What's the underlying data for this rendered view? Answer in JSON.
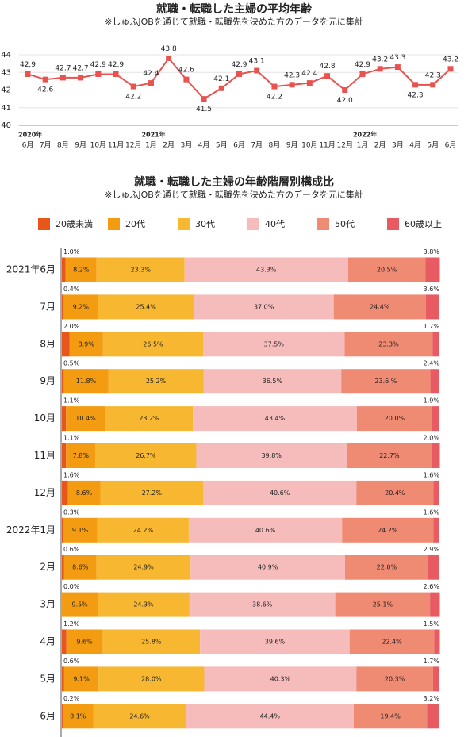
{
  "chart_data": [
    {
      "type": "line",
      "title": "就職・転職した主婦の平均年齢",
      "subtitle": "※しゅふJOBを通じて就職・転職先を決めた方のデータを元に集計",
      "categories": [
        "6月",
        "7月",
        "8月",
        "9月",
        "10月",
        "11月",
        "12月",
        "1月",
        "2月",
        "3月",
        "4月",
        "5月",
        "6月",
        "7月",
        "8月",
        "9月",
        "10月",
        "11月",
        "12月",
        "1月",
        "2月",
        "3月",
        "4月",
        "5月",
        "6月"
      ],
      "year_labels": [
        "2020年",
        null,
        null,
        null,
        null,
        null,
        null,
        "2021年",
        null,
        null,
        null,
        null,
        null,
        null,
        null,
        null,
        null,
        null,
        null,
        "2022年",
        null,
        null,
        null,
        null,
        null
      ],
      "series": [
        {
          "color": "#e8534f",
          "values": [
            42.9,
            42.6,
            42.7,
            42.7,
            42.9,
            42.9,
            42.2,
            42.4,
            43.8,
            42.6,
            41.5,
            42.1,
            42.9,
            43.1,
            42.2,
            42.3,
            42.4,
            42.8,
            42.0,
            42.9,
            43.2,
            43.3,
            42.3,
            42.3,
            43.2
          ],
          "value_labels": [
            "42.9",
            "42.6",
            "42.7",
            "42.7",
            "42.9",
            "42.9",
            "42.2",
            "42.4",
            "43.8",
            "42.6",
            "41.5",
            "42.1",
            "42.9",
            "43.1",
            "42.2",
            "42.3",
            "42.4",
            "42.8",
            "42.0",
            "42.9",
            "43.2",
            "43.3",
            "42.3",
            "42.3",
            "43.2"
          ]
        }
      ],
      "ylim": [
        40,
        44
      ],
      "yticks": [
        40,
        41,
        42,
        43,
        44
      ],
      "grid": true
    },
    {
      "type": "bar",
      "orientation": "horizontal",
      "stacked": true,
      "title": "就職・転職した主婦の年齢階層別構成比",
      "subtitle": "※しゅふJOBを通じて就職・転職先を決めた方のデータを元に集計",
      "categories": [
        "2021年6月",
        "7月",
        "8月",
        "9月",
        "10月",
        "11月",
        "12月",
        "2022年1月",
        "2月",
        "3月",
        "4月",
        "5月",
        "6月"
      ],
      "xlim": [
        0,
        100
      ],
      "series": [
        {
          "name": "20歳未満",
          "color": "#e8561c",
          "values": [
            1.0,
            0.4,
            2.0,
            0.5,
            1.1,
            1.1,
            1.6,
            0.3,
            0.6,
            0,
            1.2,
            0.6,
            0.2
          ],
          "value_labels": [
            "1.0%",
            "0.4%",
            "2.0%",
            "0.5%",
            "1.1%",
            "1.1%",
            "1.6%",
            "0.3%",
            "0.6%",
            "0.0%",
            "1.2%",
            "0.6%",
            "0.2%"
          ]
        },
        {
          "name": "20代",
          "color": "#f39c12",
          "values": [
            8.2,
            9.2,
            8.9,
            11.8,
            10.4,
            7.8,
            8.6,
            9.1,
            8.6,
            9.5,
            9.6,
            9.1,
            8.1
          ],
          "value_labels": [
            "8.2%",
            "9.2%",
            "8.9%",
            "11.8%",
            "10.4%",
            "7.8%",
            "8.6%",
            "9.1%",
            "8.6%",
            "9.5%",
            "9.6%",
            "9.1%",
            "8.1%"
          ]
        },
        {
          "name": "30代",
          "color": "#f8b731",
          "values": [
            23.3,
            25.4,
            26.5,
            25.2,
            23.2,
            26.7,
            27.2,
            24.2,
            24.9,
            24.3,
            25.8,
            28.0,
            24.6
          ],
          "value_labels": [
            "23.3%",
            "25.4%",
            "26.5%",
            "25.2%",
            "23.2%",
            "26.7%",
            "27.2%",
            "24.2%",
            "24.9%",
            "24.3%",
            "25.8%",
            "28.0%",
            "24.6%"
          ]
        },
        {
          "name": "40代",
          "color": "#f6bcbc",
          "values": [
            43.3,
            37.0,
            37.5,
            36.5,
            43.4,
            39.8,
            40.6,
            40.6,
            40.9,
            38.6,
            39.6,
            40.3,
            44.4
          ],
          "value_labels": [
            "43.3%",
            "37.0%",
            "37.5%",
            "36.5%",
            "43.4%",
            "39.8%",
            "40.6%",
            "40.6%",
            "40.9%",
            "38.6%",
            "39.6%",
            "40.3%",
            "44.4%"
          ]
        },
        {
          "name": "50代",
          "color": "#ef8a73",
          "values": [
            20.5,
            24.4,
            23.3,
            23.6,
            20.0,
            22.7,
            20.4,
            24.2,
            22.0,
            25.1,
            22.4,
            20.3,
            19.4
          ],
          "value_labels": [
            "20.5%",
            "24.4%",
            "23.3%",
            "23.6 %",
            "20.0%",
            "22.7%",
            "20.4%",
            "24.2%",
            "22.0%",
            "25.1%",
            "22.4%",
            "20.3%",
            "19.4%"
          ]
        },
        {
          "name": "60歳以上",
          "color": "#e85b63",
          "values": [
            3.8,
            3.6,
            1.7,
            2.4,
            1.9,
            2.0,
            1.6,
            1.6,
            2.9,
            2.6,
            1.5,
            1.7,
            3.2
          ],
          "value_labels": [
            "3.8%",
            "3.6%",
            "1.7%",
            "2.4%",
            "1.9%",
            "2.0%",
            "1.6%",
            "1.6%",
            "2.9%",
            "2.6%",
            "1.5%",
            "1.7%",
            "3.2%"
          ]
        }
      ]
    }
  ]
}
